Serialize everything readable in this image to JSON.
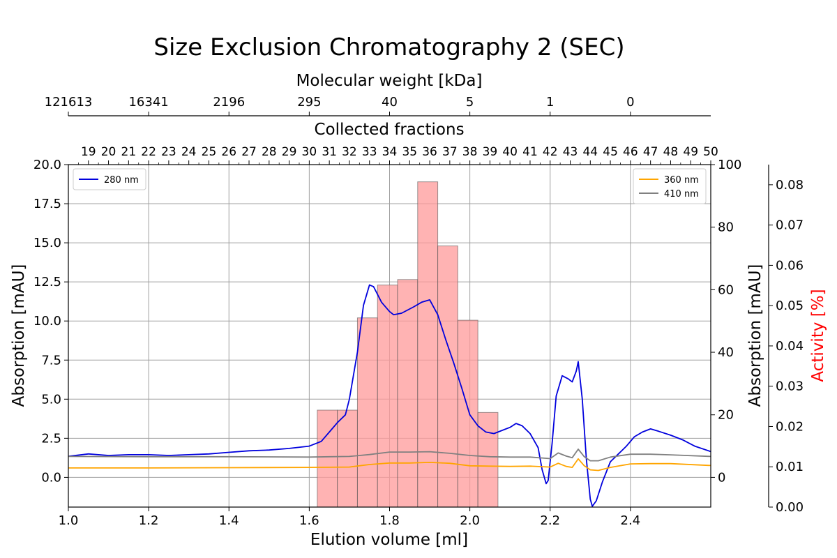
{
  "chart_data": {
    "type": "line",
    "title": "Size Exclusion Chromatography 2 (SEC)",
    "xlabel": "Elution volume [ml]",
    "ylabel": "Absorption [mAU]",
    "y2label": "Absorption [mAU]",
    "y3label": "Activity [%]",
    "top_axis_label": "Molecular weight [kDa]",
    "fraction_axis_label": "Collected fractions",
    "xlim": [
      1.0,
      2.6
    ],
    "ylim": [
      -1.9,
      20.0
    ],
    "y2lim": [
      -9.5,
      100
    ],
    "y3lim": [
      0.0,
      0.085
    ],
    "grid": true,
    "colors": {
      "nm280": "#0000dd",
      "nm360": "#ffa500",
      "nm410": "#808080",
      "bars": "#ff9999",
      "activity_label": "#ff0000"
    },
    "x_ticks": [
      {
        "v": 1.0,
        "label": "1.0"
      },
      {
        "v": 1.2,
        "label": "1.2"
      },
      {
        "v": 1.4,
        "label": "1.4"
      },
      {
        "v": 1.6,
        "label": "1.6"
      },
      {
        "v": 1.8,
        "label": "1.8"
      },
      {
        "v": 2.0,
        "label": "2.0"
      },
      {
        "v": 2.2,
        "label": "2.2"
      },
      {
        "v": 2.4,
        "label": "2.4"
      }
    ],
    "y_ticks": [
      {
        "v": 0.0,
        "label": "0.0"
      },
      {
        "v": 2.5,
        "label": "2.5"
      },
      {
        "v": 5.0,
        "label": "5.0"
      },
      {
        "v": 7.5,
        "label": "7.5"
      },
      {
        "v": 10.0,
        "label": "10.0"
      },
      {
        "v": 12.5,
        "label": "12.5"
      },
      {
        "v": 15.0,
        "label": "15.0"
      },
      {
        "v": 17.5,
        "label": "17.5"
      },
      {
        "v": 20.0,
        "label": "20.0"
      }
    ],
    "y2_ticks": [
      {
        "v": 0,
        "label": "0"
      },
      {
        "v": 20,
        "label": "20"
      },
      {
        "v": 40,
        "label": "40"
      },
      {
        "v": 60,
        "label": "60"
      },
      {
        "v": 80,
        "label": "80"
      },
      {
        "v": 100,
        "label": "100"
      }
    ],
    "y3_ticks": [
      {
        "v": 0.0,
        "label": "0.00"
      },
      {
        "v": 0.01,
        "label": "0.01"
      },
      {
        "v": 0.02,
        "label": "0.02"
      },
      {
        "v": 0.03,
        "label": "0.03"
      },
      {
        "v": 0.04,
        "label": "0.04"
      },
      {
        "v": 0.05,
        "label": "0.05"
      },
      {
        "v": 0.06,
        "label": "0.06"
      },
      {
        "v": 0.07,
        "label": "0.07"
      },
      {
        "v": 0.08,
        "label": "0.08"
      }
    ],
    "mw_ticks": [
      {
        "v": 1.0,
        "label": "121613"
      },
      {
        "v": 1.2,
        "label": "16341"
      },
      {
        "v": 1.4,
        "label": "2196"
      },
      {
        "v": 1.6,
        "label": "295"
      },
      {
        "v": 1.8,
        "label": "40"
      },
      {
        "v": 2.0,
        "label": "5"
      },
      {
        "v": 2.2,
        "label": "1"
      },
      {
        "v": 2.4,
        "label": "0"
      }
    ],
    "fractions": {
      "first": 19,
      "last": 50,
      "first_x": 1.05,
      "step": 0.05
    },
    "legend_left": [
      {
        "name": "280 nm",
        "color": "#0000dd"
      }
    ],
    "legend_right": [
      {
        "name": "360 nm",
        "color": "#ffa500"
      },
      {
        "name": "410 nm",
        "color": "#808080"
      }
    ],
    "bars": [
      {
        "x0": 1.62,
        "x1": 1.67,
        "value": 4.3
      },
      {
        "x0": 1.67,
        "x1": 1.72,
        "value": 4.3
      },
      {
        "x0": 1.72,
        "x1": 1.77,
        "value": 10.2
      },
      {
        "x0": 1.77,
        "x1": 1.82,
        "value": 12.3
      },
      {
        "x0": 1.82,
        "x1": 1.87,
        "value": 12.65
      },
      {
        "x0": 1.87,
        "x1": 1.92,
        "value": 18.9
      },
      {
        "x0": 1.92,
        "x1": 1.97,
        "value": 14.8
      },
      {
        "x0": 1.97,
        "x1": 2.02,
        "value": 10.05
      },
      {
        "x0": 2.02,
        "x1": 2.07,
        "value": 4.15
      }
    ],
    "series": [
      {
        "name": "280 nm",
        "axis": "left",
        "color": "#0000dd",
        "points": [
          [
            1.0,
            1.35
          ],
          [
            1.05,
            1.5
          ],
          [
            1.1,
            1.4
          ],
          [
            1.15,
            1.45
          ],
          [
            1.2,
            1.45
          ],
          [
            1.25,
            1.4
          ],
          [
            1.3,
            1.45
          ],
          [
            1.35,
            1.5
          ],
          [
            1.4,
            1.6
          ],
          [
            1.45,
            1.7
          ],
          [
            1.5,
            1.75
          ],
          [
            1.55,
            1.85
          ],
          [
            1.6,
            2.0
          ],
          [
            1.63,
            2.3
          ],
          [
            1.65,
            2.9
          ],
          [
            1.67,
            3.5
          ],
          [
            1.69,
            4.0
          ],
          [
            1.7,
            5.0
          ],
          [
            1.72,
            8.0
          ],
          [
            1.735,
            11.0
          ],
          [
            1.75,
            12.3
          ],
          [
            1.76,
            12.2
          ],
          [
            1.78,
            11.2
          ],
          [
            1.8,
            10.6
          ],
          [
            1.81,
            10.4
          ],
          [
            1.83,
            10.5
          ],
          [
            1.86,
            10.9
          ],
          [
            1.88,
            11.2
          ],
          [
            1.9,
            11.35
          ],
          [
            1.92,
            10.4
          ],
          [
            1.94,
            8.8
          ],
          [
            1.96,
            7.3
          ],
          [
            1.98,
            5.7
          ],
          [
            2.0,
            4.0
          ],
          [
            2.02,
            3.3
          ],
          [
            2.04,
            2.9
          ],
          [
            2.06,
            2.8
          ],
          [
            2.08,
            3.0
          ],
          [
            2.1,
            3.2
          ],
          [
            2.115,
            3.45
          ],
          [
            2.13,
            3.3
          ],
          [
            2.15,
            2.8
          ],
          [
            2.17,
            1.9
          ],
          [
            2.18,
            0.5
          ],
          [
            2.19,
            -0.4
          ],
          [
            2.195,
            -0.2
          ],
          [
            2.205,
            2.2
          ],
          [
            2.215,
            5.2
          ],
          [
            2.23,
            6.5
          ],
          [
            2.245,
            6.3
          ],
          [
            2.255,
            6.1
          ],
          [
            2.265,
            6.8
          ],
          [
            2.27,
            7.4
          ],
          [
            2.28,
            5.0
          ],
          [
            2.29,
            1.2
          ],
          [
            2.3,
            -1.4
          ],
          [
            2.305,
            -1.85
          ],
          [
            2.315,
            -1.5
          ],
          [
            2.33,
            -0.3
          ],
          [
            2.35,
            1.0
          ],
          [
            2.37,
            1.5
          ],
          [
            2.39,
            2.0
          ],
          [
            2.41,
            2.6
          ],
          [
            2.43,
            2.9
          ],
          [
            2.45,
            3.1
          ],
          [
            2.47,
            2.95
          ],
          [
            2.5,
            2.7
          ],
          [
            2.53,
            2.4
          ],
          [
            2.56,
            2.0
          ],
          [
            2.6,
            1.65
          ]
        ]
      },
      {
        "name": "360 nm",
        "axis": "right",
        "color": "#ffa500",
        "points": [
          [
            1.0,
            3.0
          ],
          [
            1.2,
            3.0
          ],
          [
            1.4,
            3.1
          ],
          [
            1.6,
            3.2
          ],
          [
            1.7,
            3.3
          ],
          [
            1.75,
            4.1
          ],
          [
            1.8,
            4.6
          ],
          [
            1.85,
            4.6
          ],
          [
            1.9,
            4.8
          ],
          [
            1.95,
            4.5
          ],
          [
            2.0,
            3.7
          ],
          [
            2.05,
            3.6
          ],
          [
            2.1,
            3.5
          ],
          [
            2.15,
            3.6
          ],
          [
            2.2,
            3.3
          ],
          [
            2.22,
            4.5
          ],
          [
            2.24,
            3.5
          ],
          [
            2.255,
            3.2
          ],
          [
            2.27,
            5.9
          ],
          [
            2.285,
            3.7
          ],
          [
            2.3,
            2.4
          ],
          [
            2.32,
            2.2
          ],
          [
            2.35,
            3.2
          ],
          [
            2.4,
            4.3
          ],
          [
            2.45,
            4.4
          ],
          [
            2.5,
            4.4
          ],
          [
            2.6,
            3.8
          ]
        ]
      },
      {
        "name": "410 nm",
        "axis": "right",
        "color": "#808080",
        "points": [
          [
            1.0,
            6.7
          ],
          [
            1.2,
            6.6
          ],
          [
            1.4,
            6.6
          ],
          [
            1.6,
            6.5
          ],
          [
            1.65,
            6.6
          ],
          [
            1.7,
            6.7
          ],
          [
            1.75,
            7.3
          ],
          [
            1.8,
            8.1
          ],
          [
            1.85,
            8.1
          ],
          [
            1.9,
            8.2
          ],
          [
            1.95,
            7.7
          ],
          [
            2.0,
            7.0
          ],
          [
            2.05,
            6.6
          ],
          [
            2.1,
            6.5
          ],
          [
            2.15,
            6.5
          ],
          [
            2.2,
            6.0
          ],
          [
            2.22,
            7.8
          ],
          [
            2.24,
            6.8
          ],
          [
            2.255,
            6.3
          ],
          [
            2.27,
            9.0
          ],
          [
            2.285,
            6.6
          ],
          [
            2.3,
            5.3
          ],
          [
            2.32,
            5.3
          ],
          [
            2.35,
            6.5
          ],
          [
            2.4,
            7.4
          ],
          [
            2.45,
            7.4
          ],
          [
            2.5,
            7.2
          ],
          [
            2.6,
            6.7
          ]
        ]
      }
    ]
  }
}
